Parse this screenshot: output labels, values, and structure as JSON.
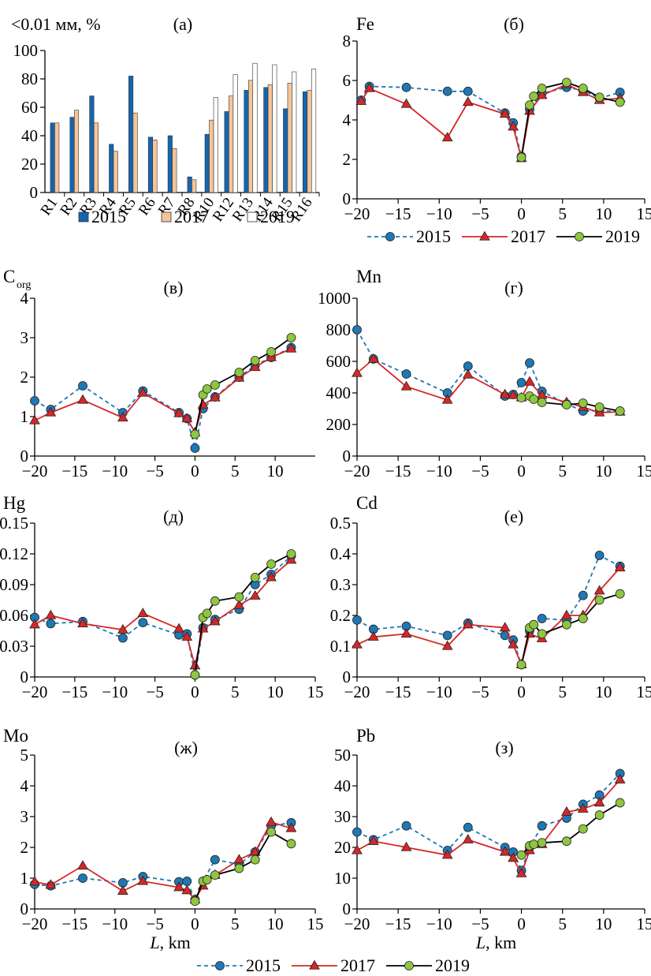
{
  "colors": {
    "s2015": "#1f77b4",
    "s2017": "#d62728",
    "s2019": "#8ec63f",
    "bar2015": "#1565ad",
    "bar2017": "#f5c59a",
    "bar2019": "#ffffff"
  },
  "legend": {
    "labels": [
      "2015",
      "2017",
      "2019"
    ]
  },
  "chart_data": [
    {
      "type": "bar",
      "panel": "(а)",
      "ylabel": "<0.01 мм, %",
      "ylim": [
        0,
        100
      ],
      "yticks": [
        0,
        20,
        40,
        60,
        80,
        100
      ],
      "categories": [
        "R1",
        "R2",
        "R3",
        "R4",
        "R5",
        "R6",
        "R7",
        "R8",
        "R10",
        "R12",
        "R13",
        "R14",
        "R15",
        "R16"
      ],
      "series": [
        {
          "name": "2015",
          "values": [
            49,
            53,
            68,
            34,
            82,
            39,
            40,
            11,
            41,
            57,
            72,
            74,
            59,
            71
          ]
        },
        {
          "name": "2017",
          "values": [
            49,
            58,
            49,
            29,
            56,
            37,
            31,
            9,
            51,
            68,
            79,
            76,
            77,
            72
          ]
        },
        {
          "name": "2019",
          "values": [
            null,
            null,
            null,
            null,
            null,
            null,
            null,
            null,
            67,
            83,
            91,
            90,
            85,
            87
          ]
        }
      ]
    },
    {
      "type": "line",
      "panel": "(б)",
      "ylabel": "Fe",
      "xlim": [
        -20,
        15
      ],
      "ylim": [
        0,
        8
      ],
      "xticks": [
        -20,
        -15,
        -10,
        -5,
        0,
        5,
        10,
        15
      ],
      "yticks": [
        0,
        2,
        4,
        6,
        8
      ],
      "series": [
        {
          "name": "2015",
          "x": [
            -19.5,
            -18.5,
            -14,
            -9,
            -6.5,
            -2,
            -1,
            0,
            1,
            2.5,
            5.5,
            7.5,
            9.5,
            12
          ],
          "y": [
            5.0,
            5.7,
            5.65,
            5.45,
            5.45,
            4.35,
            3.85,
            2.15,
            4.55,
            5.35,
            5.65,
            5.5,
            5.1,
            5.4
          ]
        },
        {
          "name": "2017",
          "x": [
            -19.5,
            -18.5,
            -14,
            -9,
            -6.5,
            -2,
            -1,
            0,
            1,
            2.5,
            5.5,
            7.5,
            9.5,
            12
          ],
          "y": [
            4.95,
            5.6,
            4.8,
            3.1,
            4.9,
            4.3,
            3.65,
            2.05,
            4.45,
            5.25,
            5.8,
            5.4,
            5.0,
            5.1
          ]
        },
        {
          "name": "2019",
          "x": [
            0,
            1,
            1.5,
            2.5,
            5.5,
            7.5,
            9.5,
            12
          ],
          "y": [
            2.1,
            4.75,
            5.2,
            5.6,
            5.9,
            5.6,
            5.15,
            4.9
          ]
        }
      ]
    },
    {
      "type": "line",
      "panel": "(в)",
      "ylabel": "C",
      "ylabel_sub": "org",
      "xlim": [
        -20,
        15
      ],
      "ylim": [
        0,
        4
      ],
      "xticks": [
        -20,
        -15,
        -10,
        -5,
        0,
        5,
        10
      ],
      "yticks": [
        0,
        1,
        2,
        3,
        4
      ],
      "series": [
        {
          "name": "2015",
          "x": [
            -20,
            -18,
            -14,
            -9,
            -6.5,
            -2,
            -1,
            0,
            1,
            2.5,
            5.5,
            7.5,
            9.5,
            12
          ],
          "y": [
            1.4,
            1.18,
            1.78,
            1.1,
            1.65,
            1.1,
            0.95,
            0.2,
            1.2,
            1.5,
            2.0,
            2.3,
            2.5,
            2.75
          ]
        },
        {
          "name": "2017",
          "x": [
            -20,
            -18,
            -14,
            -9,
            -6.5,
            -2,
            -1,
            0,
            1,
            2.5,
            5.5,
            7.5,
            9.5,
            12
          ],
          "y": [
            0.9,
            1.1,
            1.42,
            0.97,
            1.6,
            1.08,
            0.95,
            0.6,
            1.3,
            1.48,
            1.98,
            2.25,
            2.5,
            2.72
          ]
        },
        {
          "name": "2019",
          "x": [
            0,
            1,
            1.5,
            2.5,
            5.5,
            7.5,
            9.5,
            12
          ],
          "y": [
            0.55,
            1.55,
            1.7,
            1.8,
            2.12,
            2.42,
            2.64,
            3.0
          ]
        }
      ]
    },
    {
      "type": "line",
      "panel": "(г)",
      "ylabel": "Mn",
      "xlim": [
        -20,
        15
      ],
      "ylim": [
        0,
        1000
      ],
      "xticks": [
        -20,
        -15,
        -10,
        -5,
        0,
        5,
        10,
        15
      ],
      "yticks": [
        0,
        200,
        400,
        600,
        800,
        1000
      ],
      "series": [
        {
          "name": "2015",
          "x": [
            -20,
            -18,
            -14,
            -9,
            -6.5,
            -2,
            -1,
            0,
            1,
            2.5,
            5.5,
            7.5,
            9.5,
            12
          ],
          "y": [
            800,
            615,
            520,
            400,
            570,
            380,
            390,
            465,
            590,
            410,
            330,
            285,
            285,
            285
          ]
        },
        {
          "name": "2017",
          "x": [
            -20,
            -18,
            -14,
            -9,
            -6.5,
            -2,
            -1,
            0,
            1,
            2.5,
            5.5,
            7.5,
            9.5,
            12
          ],
          "y": [
            525,
            615,
            440,
            355,
            515,
            390,
            385,
            370,
            470,
            385,
            340,
            310,
            275,
            280
          ]
        },
        {
          "name": "2019",
          "x": [
            0,
            1,
            1.5,
            2.5,
            5.5,
            7.5,
            9.5,
            12
          ],
          "y": [
            370,
            380,
            360,
            340,
            325,
            335,
            310,
            285
          ]
        }
      ]
    },
    {
      "type": "line",
      "panel": "(д)",
      "ylabel": "Hg",
      "xlim": [
        -20,
        15
      ],
      "ylim": [
        0,
        0.15
      ],
      "xticks": [
        -20,
        -15,
        -10,
        -5,
        0,
        5,
        10,
        15
      ],
      "yticks": [
        0,
        0.03,
        0.06,
        0.09,
        0.12,
        0.15
      ],
      "ytick_labels": [
        "0",
        "0.03",
        "0.06",
        "0.09",
        "0.12",
        "0.15"
      ],
      "series": [
        {
          "name": "2015",
          "x": [
            -20,
            -18,
            -14,
            -9,
            -6.5,
            -2,
            -1,
            0,
            1,
            2.5,
            5.5,
            7.5,
            9.5,
            12
          ],
          "y": [
            0.058,
            0.052,
            0.054,
            0.038,
            0.053,
            0.041,
            0.042,
            0.002,
            0.048,
            0.056,
            0.066,
            0.09,
            0.1,
            0.118
          ]
        },
        {
          "name": "2017",
          "x": [
            -20,
            -18,
            -14,
            -9,
            -6.5,
            -2,
            -1,
            0,
            1,
            2.5,
            5.5,
            7.5,
            9.5,
            12
          ],
          "y": [
            0.051,
            0.06,
            0.052,
            0.046,
            0.062,
            0.047,
            0.039,
            0.011,
            0.047,
            0.054,
            0.07,
            0.079,
            0.097,
            0.114
          ]
        },
        {
          "name": "2019",
          "x": [
            0,
            1,
            1.5,
            2.5,
            5.5,
            7.5,
            9.5,
            12
          ],
          "y": [
            0.002,
            0.058,
            0.062,
            0.074,
            0.078,
            0.097,
            0.11,
            0.12
          ]
        }
      ]
    },
    {
      "type": "line",
      "panel": "(е)",
      "ylabel": "Cd",
      "xlim": [
        -20,
        15
      ],
      "ylim": [
        0,
        0.5
      ],
      "xticks": [
        -20,
        -15,
        -10,
        -5,
        0,
        5,
        10,
        15
      ],
      "yticks": [
        0,
        0.1,
        0.2,
        0.3,
        0.4,
        0.5
      ],
      "ytick_labels": [
        "0",
        "0.1",
        "0.2",
        "0.3",
        "0.4",
        "0.5"
      ],
      "series": [
        {
          "name": "2015",
          "x": [
            -20,
            -18,
            -14,
            -9,
            -6.5,
            -2,
            -1,
            0,
            1,
            2.5,
            5.5,
            7.5,
            9.5,
            12
          ],
          "y": [
            0.185,
            0.155,
            0.165,
            0.135,
            0.175,
            0.135,
            0.12,
            0.04,
            0.15,
            0.19,
            0.185,
            0.265,
            0.395,
            0.36
          ]
        },
        {
          "name": "2017",
          "x": [
            -20,
            -18,
            -14,
            -9,
            -6.5,
            -2,
            -1,
            0,
            1,
            2.5,
            5.5,
            7.5,
            9.5,
            12
          ],
          "y": [
            0.105,
            0.13,
            0.14,
            0.1,
            0.17,
            0.16,
            0.105,
            0.04,
            0.14,
            0.125,
            0.2,
            0.2,
            0.28,
            0.355
          ]
        },
        {
          "name": "2019",
          "x": [
            0,
            1,
            1.5,
            2.5,
            5.5,
            7.5,
            9.5,
            12
          ],
          "y": [
            0.04,
            0.16,
            0.17,
            0.14,
            0.17,
            0.19,
            0.25,
            0.27
          ]
        }
      ]
    },
    {
      "type": "line",
      "panel": "(ж)",
      "ylabel": "Mo",
      "xlabel": "L, km",
      "xlim": [
        -20,
        15
      ],
      "ylim": [
        0,
        5
      ],
      "xticks": [
        -20,
        -15,
        -10,
        -5,
        0,
        5,
        10,
        15
      ],
      "yticks": [
        0,
        1,
        2,
        3,
        4,
        5
      ],
      "series": [
        {
          "name": "2015",
          "x": [
            -20,
            -18,
            -14,
            -9,
            -6.5,
            -2,
            -1,
            0,
            1,
            2.5,
            5.5,
            7.5,
            9.5,
            12
          ],
          "y": [
            0.8,
            0.75,
            1.0,
            0.85,
            1.05,
            0.88,
            0.9,
            0.3,
            0.9,
            1.6,
            1.45,
            1.85,
            2.7,
            2.8
          ]
        },
        {
          "name": "2017",
          "x": [
            -20,
            -18,
            -14,
            -9,
            -6.5,
            -2,
            -1,
            0,
            1,
            2.5,
            5.5,
            7.5,
            9.5,
            12
          ],
          "y": [
            0.88,
            0.78,
            1.4,
            0.58,
            0.9,
            0.7,
            0.6,
            0.3,
            0.75,
            1.1,
            1.6,
            1.85,
            2.82,
            2.62
          ]
        },
        {
          "name": "2019",
          "x": [
            0,
            1,
            1.5,
            2.5,
            5.5,
            7.5,
            9.5,
            12
          ],
          "y": [
            0.25,
            0.9,
            0.95,
            1.1,
            1.32,
            1.6,
            2.5,
            2.12
          ]
        }
      ]
    },
    {
      "type": "line",
      "panel": "(з)",
      "ylabel": "Pb",
      "xlabel": "L, km",
      "xlim": [
        -20,
        15
      ],
      "ylim": [
        0,
        50
      ],
      "xticks": [
        -20,
        -15,
        -10,
        -5,
        0,
        5,
        10,
        15
      ],
      "yticks": [
        0,
        10,
        20,
        30,
        40,
        50
      ],
      "series": [
        {
          "name": "2015",
          "x": [
            -20,
            -18,
            -14,
            -9,
            -6.5,
            -2,
            -1,
            0,
            1,
            2.5,
            5.5,
            7.5,
            9.5,
            12
          ],
          "y": [
            25,
            22.5,
            27,
            19,
            26.5,
            20,
            18.5,
            12.5,
            20,
            27,
            29.5,
            34,
            37,
            44
          ]
        },
        {
          "name": "2017",
          "x": [
            -20,
            -18,
            -14,
            -9,
            -6.5,
            -2,
            -1,
            0,
            1,
            2.5,
            5.5,
            7.5,
            9.5,
            12
          ],
          "y": [
            19,
            22,
            20,
            17.5,
            22.5,
            18.5,
            16.5,
            11.5,
            19,
            21,
            31.5,
            32.5,
            34.5,
            42
          ]
        },
        {
          "name": "2019",
          "x": [
            0,
            1,
            1.5,
            2.5,
            5.5,
            7.5,
            9.5,
            12
          ],
          "y": [
            17.5,
            20.5,
            21,
            21.5,
            22,
            26,
            30.5,
            34.5
          ]
        }
      ]
    }
  ]
}
